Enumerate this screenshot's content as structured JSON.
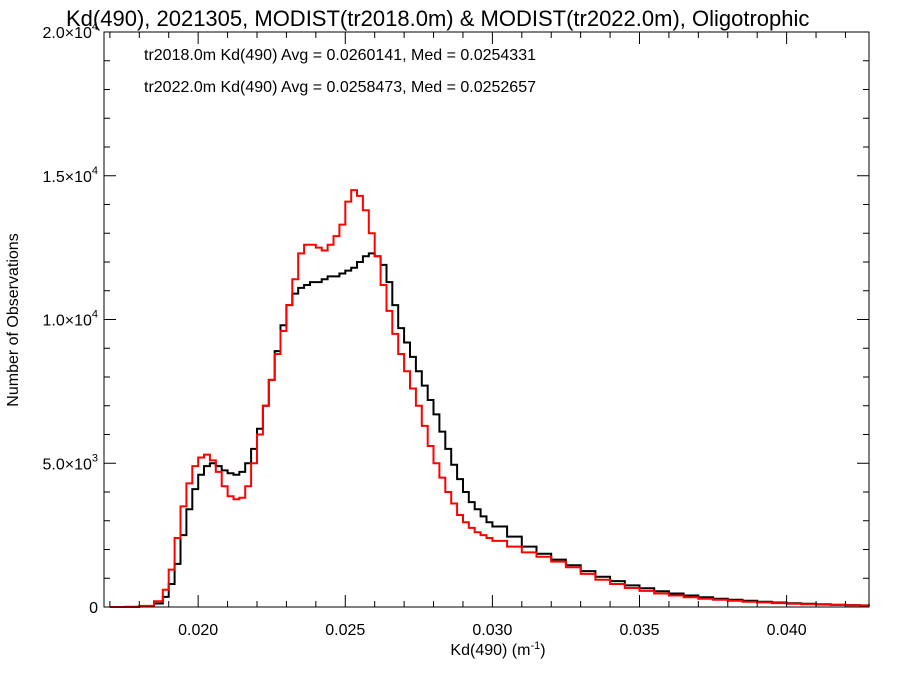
{
  "chart_data": {
    "type": "line",
    "title": "Kd(490), 2021305, MODIST(tr2018.0m) & MODIST(tr2022.0m), Oligotrophic",
    "xlabel": "Kd(490) (m",
    "xlabel_sup": "-1",
    "xlabel_close": ")",
    "ylabel": "Number of Observations",
    "xlim": [
      0.0168,
      0.0428
    ],
    "ylim": [
      0,
      20000
    ],
    "x_ticks": [
      {
        "value": 0.02,
        "label": "0.020"
      },
      {
        "value": 0.025,
        "label": "0.025"
      },
      {
        "value": 0.03,
        "label": "0.030"
      },
      {
        "value": 0.035,
        "label": "0.035"
      },
      {
        "value": 0.04,
        "label": "0.040"
      }
    ],
    "y_ticks": [
      {
        "value": 0,
        "label": "0",
        "sup": ""
      },
      {
        "value": 5000,
        "label": "5.0×10",
        "sup": "3"
      },
      {
        "value": 10000,
        "label": "1.0×10",
        "sup": "4"
      },
      {
        "value": 15000,
        "label": "1.5×10",
        "sup": "4"
      },
      {
        "value": 20000,
        "label": "2.0×10",
        "sup": "4"
      }
    ],
    "grid": false,
    "legend_placement": "top-left",
    "annotations": [
      {
        "text": "tr2018.0m Kd(490) Avg = 0.0260141, Med = 0.0254331",
        "color": "#000000"
      },
      {
        "text": "tr2022.0m Kd(490) Avg = 0.0258473, Med = 0.0252657",
        "color": "#ff0000"
      }
    ],
    "series": [
      {
        "color": "#000000",
        "step": true,
        "points": [
          [
            0.017,
            0
          ],
          [
            0.0175,
            5
          ],
          [
            0.018,
            30
          ],
          [
            0.0185,
            120
          ],
          [
            0.0188,
            350
          ],
          [
            0.019,
            800
          ],
          [
            0.0192,
            1500
          ],
          [
            0.0194,
            2500
          ],
          [
            0.0196,
            3400
          ],
          [
            0.0198,
            4100
          ],
          [
            0.02,
            4600
          ],
          [
            0.0202,
            4900
          ],
          [
            0.0204,
            5000
          ],
          [
            0.0206,
            4900
          ],
          [
            0.0208,
            4750
          ],
          [
            0.021,
            4650
          ],
          [
            0.0212,
            4600
          ],
          [
            0.0214,
            4700
          ],
          [
            0.0216,
            5000
          ],
          [
            0.0218,
            5500
          ],
          [
            0.022,
            6200
          ],
          [
            0.0222,
            7000
          ],
          [
            0.0224,
            7900
          ],
          [
            0.0226,
            8900
          ],
          [
            0.0228,
            9800
          ],
          [
            0.023,
            10500
          ],
          [
            0.0232,
            10900
          ],
          [
            0.0234,
            11100
          ],
          [
            0.0236,
            11200
          ],
          [
            0.0238,
            11300
          ],
          [
            0.024,
            11300
          ],
          [
            0.0242,
            11400
          ],
          [
            0.0244,
            11500
          ],
          [
            0.0246,
            11500
          ],
          [
            0.0248,
            11600
          ],
          [
            0.025,
            11700
          ],
          [
            0.0252,
            11800
          ],
          [
            0.0254,
            12000
          ],
          [
            0.0256,
            12200
          ],
          [
            0.0258,
            12300
          ],
          [
            0.026,
            12200
          ],
          [
            0.0262,
            11900
          ],
          [
            0.0264,
            11300
          ],
          [
            0.0266,
            10500
          ],
          [
            0.0268,
            9700
          ],
          [
            0.027,
            9200
          ],
          [
            0.0272,
            8700
          ],
          [
            0.0274,
            8200
          ],
          [
            0.0276,
            7700
          ],
          [
            0.0278,
            7200
          ],
          [
            0.028,
            6700
          ],
          [
            0.0282,
            6100
          ],
          [
            0.0284,
            5500
          ],
          [
            0.0286,
            4950
          ],
          [
            0.0288,
            4450
          ],
          [
            0.029,
            4000
          ],
          [
            0.0292,
            3650
          ],
          [
            0.0294,
            3400
          ],
          [
            0.0296,
            3150
          ],
          [
            0.0298,
            2950
          ],
          [
            0.03,
            2800
          ],
          [
            0.0305,
            2450
          ],
          [
            0.031,
            2100
          ],
          [
            0.0315,
            1850
          ],
          [
            0.032,
            1650
          ],
          [
            0.0325,
            1450
          ],
          [
            0.033,
            1250
          ],
          [
            0.0335,
            1050
          ],
          [
            0.034,
            900
          ],
          [
            0.0345,
            750
          ],
          [
            0.035,
            650
          ],
          [
            0.0355,
            550
          ],
          [
            0.036,
            470
          ],
          [
            0.0365,
            400
          ],
          [
            0.037,
            340
          ],
          [
            0.0375,
            290
          ],
          [
            0.038,
            250
          ],
          [
            0.0385,
            215
          ],
          [
            0.039,
            180
          ],
          [
            0.0395,
            155
          ],
          [
            0.04,
            130
          ],
          [
            0.0405,
            110
          ],
          [
            0.041,
            95
          ],
          [
            0.0415,
            80
          ],
          [
            0.042,
            65
          ],
          [
            0.0425,
            55
          ],
          [
            0.0428,
            50
          ]
        ]
      },
      {
        "color": "#ff0000",
        "step": true,
        "points": [
          [
            0.017,
            0
          ],
          [
            0.0175,
            5
          ],
          [
            0.018,
            40
          ],
          [
            0.0185,
            200
          ],
          [
            0.0188,
            600
          ],
          [
            0.019,
            1300
          ],
          [
            0.0192,
            2400
          ],
          [
            0.0194,
            3500
          ],
          [
            0.0196,
            4300
          ],
          [
            0.0198,
            4900
          ],
          [
            0.02,
            5200
          ],
          [
            0.0202,
            5300
          ],
          [
            0.0204,
            5100
          ],
          [
            0.0206,
            4700
          ],
          [
            0.0208,
            4200
          ],
          [
            0.021,
            3850
          ],
          [
            0.0212,
            3750
          ],
          [
            0.0214,
            3800
          ],
          [
            0.0216,
            4200
          ],
          [
            0.0218,
            5000
          ],
          [
            0.022,
            6000
          ],
          [
            0.0222,
            7000
          ],
          [
            0.0224,
            7900
          ],
          [
            0.0226,
            8800
          ],
          [
            0.0228,
            9600
          ],
          [
            0.023,
            10500
          ],
          [
            0.0232,
            11400
          ],
          [
            0.0234,
            12300
          ],
          [
            0.0236,
            12600
          ],
          [
            0.0238,
            12600
          ],
          [
            0.024,
            12500
          ],
          [
            0.0242,
            12400
          ],
          [
            0.0244,
            12600
          ],
          [
            0.0246,
            12900
          ],
          [
            0.0248,
            13300
          ],
          [
            0.025,
            14100
          ],
          [
            0.0252,
            14500
          ],
          [
            0.0254,
            14300
          ],
          [
            0.0256,
            13800
          ],
          [
            0.0258,
            13000
          ],
          [
            0.026,
            12200
          ],
          [
            0.0262,
            11200
          ],
          [
            0.0264,
            10300
          ],
          [
            0.0266,
            9500
          ],
          [
            0.0268,
            8800
          ],
          [
            0.027,
            8200
          ],
          [
            0.0272,
            7600
          ],
          [
            0.0274,
            7000
          ],
          [
            0.0276,
            6300
          ],
          [
            0.0278,
            5600
          ],
          [
            0.028,
            5000
          ],
          [
            0.0282,
            4500
          ],
          [
            0.0284,
            4000
          ],
          [
            0.0286,
            3600
          ],
          [
            0.0288,
            3200
          ],
          [
            0.029,
            2950
          ],
          [
            0.0292,
            2750
          ],
          [
            0.0294,
            2600
          ],
          [
            0.0296,
            2500
          ],
          [
            0.0298,
            2400
          ],
          [
            0.03,
            2300
          ],
          [
            0.0305,
            2100
          ],
          [
            0.031,
            1900
          ],
          [
            0.0315,
            1750
          ],
          [
            0.032,
            1580
          ],
          [
            0.0325,
            1380
          ],
          [
            0.033,
            1150
          ],
          [
            0.0335,
            950
          ],
          [
            0.034,
            800
          ],
          [
            0.0345,
            660
          ],
          [
            0.035,
            560
          ],
          [
            0.0355,
            470
          ],
          [
            0.036,
            400
          ],
          [
            0.0365,
            340
          ],
          [
            0.037,
            290
          ],
          [
            0.0375,
            250
          ],
          [
            0.038,
            215
          ],
          [
            0.0385,
            185
          ],
          [
            0.039,
            160
          ],
          [
            0.0395,
            135
          ],
          [
            0.04,
            115
          ],
          [
            0.0405,
            98
          ],
          [
            0.041,
            84
          ],
          [
            0.0415,
            70
          ],
          [
            0.042,
            58
          ],
          [
            0.0425,
            48
          ],
          [
            0.0428,
            44
          ]
        ]
      }
    ]
  }
}
